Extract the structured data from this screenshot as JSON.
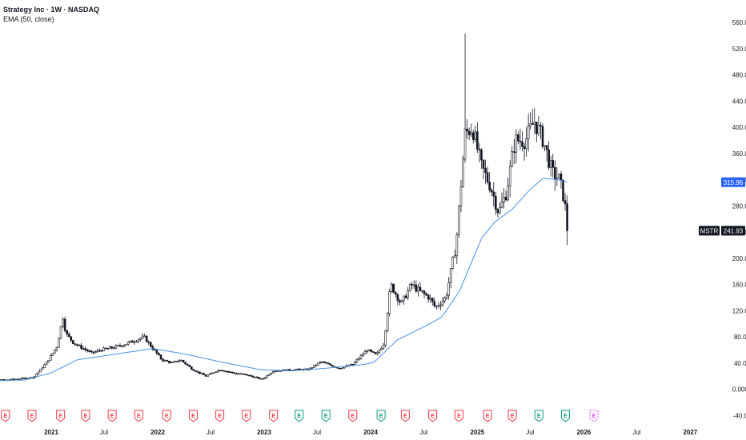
{
  "legend": {
    "title": "Strategy Inc · 1W · NASDAQ",
    "indicator": "EMA (50, close)"
  },
  "chart_data": {
    "type": "candlestick",
    "symbol": "MSTR",
    "ylim": [
      -40,
      580
    ],
    "y_ticks": [
      "560.00",
      "520.00",
      "480.00",
      "440.00",
      "400.00",
      "360.00",
      "320.00",
      "280.00",
      "240.00",
      "200.00",
      "160.00",
      "120.00",
      "80.00",
      "40.00",
      "0.0000",
      "-40.00"
    ],
    "x_ticks": [
      {
        "label": "2021",
        "date": "2021-01-01",
        "year": true
      },
      {
        "label": "Jul",
        "date": "2021-07-01",
        "year": false
      },
      {
        "label": "2022",
        "date": "2022-01-01",
        "year": true
      },
      {
        "label": "Jul",
        "date": "2022-07-01",
        "year": false
      },
      {
        "label": "2023",
        "date": "2023-01-01",
        "year": true
      },
      {
        "label": "Jul",
        "date": "2023-07-01",
        "year": false
      },
      {
        "label": "2024",
        "date": "2024-01-01",
        "year": true
      },
      {
        "label": "Jul",
        "date": "2024-07-01",
        "year": false
      },
      {
        "label": "2025",
        "date": "2025-01-01",
        "year": true
      },
      {
        "label": "Jul",
        "date": "2025-07-01",
        "year": false
      },
      {
        "label": "2026",
        "date": "2026-01-01",
        "year": true
      },
      {
        "label": "Jul",
        "date": "2026-07-01",
        "year": false
      },
      {
        "label": "2027",
        "date": "2027-01-01",
        "year": true
      }
    ],
    "price_keypoints": [
      [
        "2020-04-01",
        14
      ],
      [
        "2020-08-01",
        14
      ],
      [
        "2020-11-01",
        18
      ],
      [
        "2020-12-15",
        40
      ],
      [
        "2021-01-20",
        65
      ],
      [
        "2021-02-10",
        110
      ],
      [
        "2021-02-20",
        85
      ],
      [
        "2021-03-20",
        70
      ],
      [
        "2021-05-20",
        55
      ],
      [
        "2021-06-20",
        60
      ],
      [
        "2021-08-15",
        65
      ],
      [
        "2021-10-01",
        72
      ],
      [
        "2021-11-15",
        80
      ],
      [
        "2021-12-10",
        65
      ],
      [
        "2022-01-15",
        45
      ],
      [
        "2022-02-20",
        40
      ],
      [
        "2022-03-20",
        45
      ],
      [
        "2022-05-01",
        30
      ],
      [
        "2022-06-15",
        20
      ],
      [
        "2022-08-01",
        30
      ],
      [
        "2022-09-15",
        25
      ],
      [
        "2022-11-01",
        22
      ],
      [
        "2022-12-25",
        15
      ],
      [
        "2023-02-01",
        28
      ],
      [
        "2023-04-15",
        30
      ],
      [
        "2023-06-01",
        30
      ],
      [
        "2023-07-15",
        42
      ],
      [
        "2023-09-15",
        32
      ],
      [
        "2023-11-01",
        38
      ],
      [
        "2023-12-20",
        60
      ],
      [
        "2024-01-20",
        52
      ],
      [
        "2024-02-15",
        70
      ],
      [
        "2024-03-10",
        160
      ],
      [
        "2024-04-15",
        130
      ],
      [
        "2024-05-20",
        160
      ],
      [
        "2024-06-15",
        150
      ],
      [
        "2024-07-20",
        140
      ],
      [
        "2024-08-10",
        125
      ],
      [
        "2024-09-15",
        140
      ],
      [
        "2024-10-20",
        220
      ],
      [
        "2024-11-20",
        390
      ],
      [
        "2024-12-15",
        400
      ],
      [
        "2025-01-15",
        340
      ],
      [
        "2025-02-15",
        310
      ],
      [
        "2025-03-15",
        270
      ],
      [
        "2025-04-10",
        300
      ],
      [
        "2025-05-10",
        380
      ],
      [
        "2025-06-15",
        380
      ],
      [
        "2025-07-15",
        410
      ],
      [
        "2025-08-15",
        380
      ],
      [
        "2025-09-15",
        330
      ],
      [
        "2025-10-10",
        320
      ],
      [
        "2025-10-25",
        290
      ],
      [
        "2025-11-10",
        241.93
      ]
    ],
    "ema_keypoints": [
      [
        "2020-04-01",
        12
      ],
      [
        "2020-10-01",
        14
      ],
      [
        "2021-01-01",
        25
      ],
      [
        "2021-04-01",
        45
      ],
      [
        "2021-08-01",
        53
      ],
      [
        "2021-12-15",
        62
      ],
      [
        "2022-04-01",
        54
      ],
      [
        "2022-08-01",
        42
      ],
      [
        "2022-12-15",
        30
      ],
      [
        "2023-04-01",
        28
      ],
      [
        "2023-08-01",
        32
      ],
      [
        "2023-12-15",
        38
      ],
      [
        "2024-01-15",
        42
      ],
      [
        "2024-04-01",
        75
      ],
      [
        "2024-07-01",
        95
      ],
      [
        "2024-09-01",
        110
      ],
      [
        "2024-11-01",
        150
      ],
      [
        "2025-01-15",
        230
      ],
      [
        "2025-03-01",
        255
      ],
      [
        "2025-05-01",
        275
      ],
      [
        "2025-07-01",
        305
      ],
      [
        "2025-08-15",
        322
      ],
      [
        "2025-10-01",
        320
      ],
      [
        "2025-11-10",
        316
      ]
    ],
    "spike_high": {
      "date": "2024-11-21",
      "value": 543
    },
    "last_price": {
      "label": "MSTR",
      "value": "241.93",
      "color": "#131722"
    },
    "ema_last": {
      "value": "315.96",
      "color": "#2962ff"
    },
    "ema_color": "#4a90e2",
    "earnings_markers": [
      {
        "date": "2020-04-28",
        "kind": "past-red"
      },
      {
        "date": "2020-07-28",
        "kind": "past-red"
      },
      {
        "date": "2020-10-27",
        "kind": "past-red"
      },
      {
        "date": "2021-02-02",
        "kind": "past-red"
      },
      {
        "date": "2021-04-29",
        "kind": "past-red"
      },
      {
        "date": "2021-07-29",
        "kind": "past-red"
      },
      {
        "date": "2021-10-28",
        "kind": "past-red"
      },
      {
        "date": "2022-02-01",
        "kind": "past-red"
      },
      {
        "date": "2022-05-03",
        "kind": "past-red"
      },
      {
        "date": "2022-08-02",
        "kind": "past-red"
      },
      {
        "date": "2022-11-01",
        "kind": "past-red"
      },
      {
        "date": "2023-02-02",
        "kind": "past-red"
      },
      {
        "date": "2023-05-01",
        "kind": "past-green"
      },
      {
        "date": "2023-08-01",
        "kind": "past-green"
      },
      {
        "date": "2023-11-01",
        "kind": "past-red"
      },
      {
        "date": "2024-02-06",
        "kind": "past-green"
      },
      {
        "date": "2024-04-29",
        "kind": "past-red"
      },
      {
        "date": "2024-08-01",
        "kind": "past-red"
      },
      {
        "date": "2024-10-30",
        "kind": "past-red"
      },
      {
        "date": "2025-02-05",
        "kind": "past-red"
      },
      {
        "date": "2025-05-01",
        "kind": "past-red"
      },
      {
        "date": "2025-07-31",
        "kind": "past-green"
      },
      {
        "date": "2025-10-30",
        "kind": "past-green"
      },
      {
        "date": "2026-02-05",
        "kind": "future"
      }
    ],
    "earnings_label": "E"
  }
}
